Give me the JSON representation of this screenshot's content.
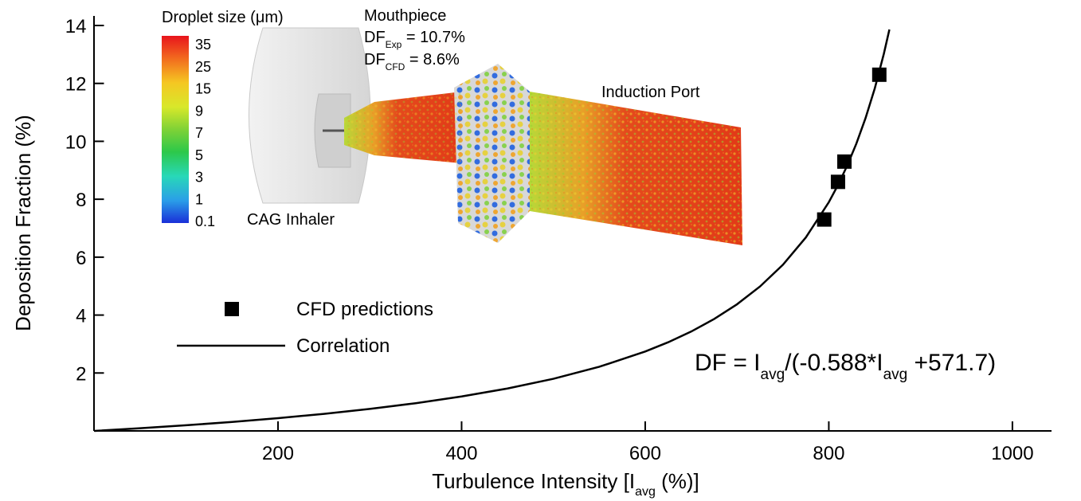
{
  "chart_data": {
    "type": "scatter",
    "x_label": [
      "Turbulence Intensity [I",
      "avg",
      " (%)]"
    ],
    "y_label": "Deposition Fraction (%)",
    "xlim": [
      0,
      1040
    ],
    "ylim": [
      0,
      14
    ],
    "xticks": [
      200,
      400,
      600,
      800,
      1000
    ],
    "yticks": [
      2,
      4,
      6,
      8,
      10,
      12,
      14
    ],
    "series": [
      {
        "name": "CFD predictions",
        "mode": "markers",
        "color": "#000000",
        "x": [
          795,
          810,
          817,
          855
        ],
        "values": [
          7.3,
          8.6,
          9.3,
          12.3
        ]
      },
      {
        "name": "Correlation",
        "mode": "line",
        "color": "#000000",
        "x": [
          0,
          50,
          100,
          150,
          200,
          250,
          300,
          350,
          400,
          450,
          500,
          550,
          600,
          625,
          650,
          675,
          700,
          725,
          750,
          775,
          800,
          810,
          820,
          830,
          840,
          850,
          860,
          866
        ],
        "values": [
          0,
          0.092,
          0.195,
          0.31,
          0.44,
          0.589,
          0.759,
          0.957,
          1.189,
          1.465,
          1.8,
          2.215,
          2.741,
          3.061,
          3.43,
          3.862,
          4.372,
          4.986,
          5.738,
          6.681,
          7.897,
          8.489,
          9.158,
          9.921,
          10.8,
          11.82,
          13.03,
          13.86
        ]
      }
    ],
    "equation": [
      "DF = I",
      "avg",
      "/(-0.588*I",
      "avg",
      " +571.7)"
    ],
    "inset": {
      "colorbar_title": "Droplet size (μm)",
      "colorbar_labels": [
        "35",
        "25",
        "15",
        "9",
        "7",
        "5",
        "3",
        "1",
        "0.1"
      ],
      "mouthpiece": "Mouthpiece",
      "df_exp": [
        "DF",
        "Exp",
        " = 10.7%"
      ],
      "df_cfd": [
        "DF",
        "CFD",
        " = 8.6%"
      ],
      "induction_port": "Induction Port",
      "inhaler": "CAG Inhaler"
    }
  }
}
